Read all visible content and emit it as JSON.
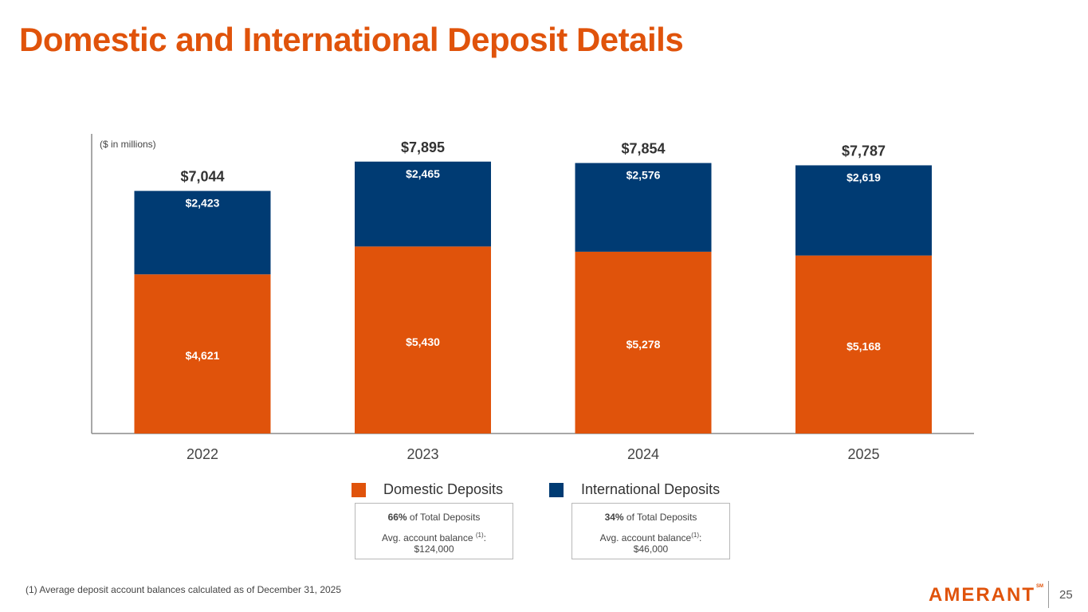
{
  "title": "Domestic and International Deposit Details",
  "chart_data": {
    "type": "bar",
    "stacked": true,
    "unit_note": "($ in millions)",
    "categories": [
      "2022",
      "2023",
      "2024",
      "2025"
    ],
    "series": [
      {
        "name": "Domestic Deposits",
        "color": "#E0530B",
        "values": [
          4621,
          5430,
          5278,
          5168
        ],
        "labels": [
          "$4,621",
          "$5,430",
          "$5,278",
          "$5,168"
        ]
      },
      {
        "name": "International Deposits",
        "color": "#003B73",
        "values": [
          2423,
          2465,
          2576,
          2619
        ],
        "labels": [
          "$2,423",
          "$2,465",
          "$2,576",
          "$2,619"
        ]
      }
    ],
    "totals": [
      7044,
      7895,
      7854,
      7787
    ],
    "total_labels": [
      "$7,044",
      "$7,895",
      "$7,854",
      "$7,787"
    ],
    "ylim": [
      0,
      8700
    ]
  },
  "legend": {
    "domestic": {
      "label": "Domestic Deposits",
      "color": "#E0530B"
    },
    "international": {
      "label": "International Deposits",
      "color": "#003B73"
    }
  },
  "info_boxes": {
    "domestic": {
      "pct": "66%",
      "pct_suffix": " of Total Deposits",
      "avg_label": "Avg. account balance ",
      "sup": "(1)",
      "colon": ":",
      "value": "$124,000"
    },
    "international": {
      "pct": "34%",
      "pct_suffix": " of Total Deposits",
      "avg_label": "Avg. account balance",
      "sup": "(1)",
      "colon": ":",
      "value": "$46,000"
    }
  },
  "footnote": "(1) Average deposit account balances  calculated as of December 31, 2025",
  "logo": {
    "text": "AMERANT",
    "mark": "SM"
  },
  "page_number": "25"
}
